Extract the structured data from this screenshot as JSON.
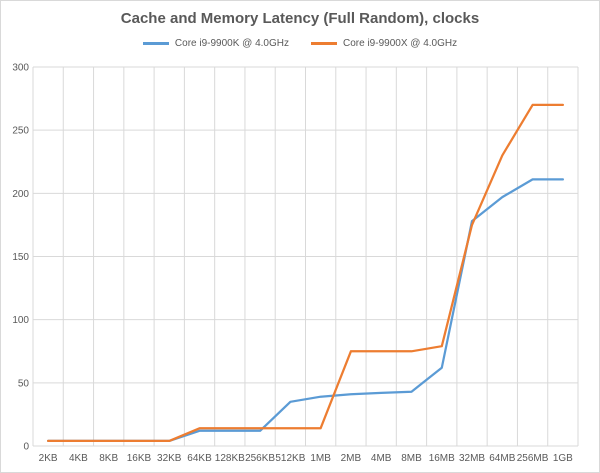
{
  "chart_data": {
    "type": "line",
    "title": "Cache and Memory Latency (Full Random), clocks",
    "xlabel": "",
    "ylabel": "",
    "ylim": [
      0,
      300
    ],
    "yticks": [
      0,
      50,
      100,
      150,
      200,
      250,
      300
    ],
    "grid": true,
    "legend_position": "top",
    "categories": [
      "2KB",
      "4KB",
      "8KB",
      "16KB",
      "32KB",
      "64KB",
      "128KB",
      "256KB",
      "512KB",
      "1MB",
      "2MB",
      "4MB",
      "8MB",
      "16MB",
      "32MB",
      "64MB",
      "256MB",
      "1GB"
    ],
    "series": [
      {
        "name": "Core i9-9900K @ 4.0GHz",
        "color": "#5b9bd5",
        "values": [
          4,
          4,
          4,
          4,
          4,
          12,
          12,
          12,
          35,
          39,
          41,
          42,
          43,
          62,
          178,
          197,
          211,
          211
        ]
      },
      {
        "name": "Core i9-9900X @ 4.0GHz",
        "color": "#ed7d31",
        "values": [
          4,
          4,
          4,
          4,
          4,
          14,
          14,
          14,
          14,
          14,
          75,
          75,
          75,
          79,
          175,
          230,
          270,
          270
        ]
      }
    ]
  }
}
